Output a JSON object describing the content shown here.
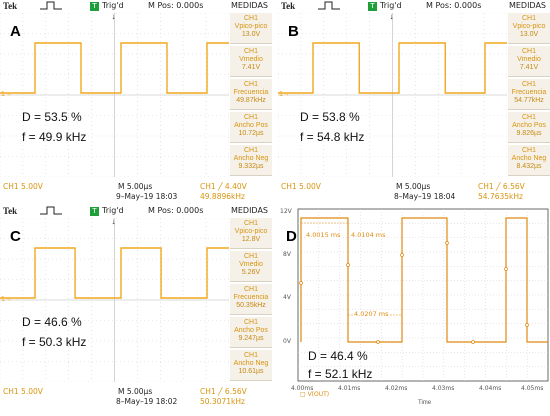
{
  "panels": [
    {
      "letter": "A",
      "top": {
        "brand": "Tek",
        "trig": "Trig'd",
        "trig_icon": "T",
        "mpos": "M Pos: 0.000s",
        "medidas": "MEDIDAS"
      },
      "measurements": [
        {
          "title": "CH1",
          "name": "Vpico-pico",
          "value": "13.0V"
        },
        {
          "title": "CH1",
          "name": "Vmedio",
          "value": "7.41V"
        },
        {
          "title": "CH1",
          "name": "Frecuencia",
          "value": "49.87kHz"
        },
        {
          "title": "CH1",
          "name": "Ancho Pos",
          "value": "10.72µs"
        },
        {
          "title": "CH1",
          "name": "Ancho Neg",
          "value": "9.332µs"
        }
      ],
      "d": "D = 53.5 %",
      "f": "f = 49.9 kHz",
      "bottom": {
        "ch": "CH1  5.00V",
        "tb": "M 5.00µs",
        "date": "9–May–19 18:03",
        "trg": "CH1 ╱ 4.40V",
        "freq": "49.8896kHz"
      },
      "duty": 0.535
    },
    {
      "letter": "B",
      "top": {
        "brand": "Tek",
        "trig": "Trig'd",
        "trig_icon": "T",
        "mpos": "M Pos: 0.000s",
        "medidas": "MEDIDAS"
      },
      "measurements": [
        {
          "title": "CH1",
          "name": "Vpico-pico",
          "value": "13.0V"
        },
        {
          "title": "CH1",
          "name": "Vmedio",
          "value": "7.41V"
        },
        {
          "title": "CH1",
          "name": "Frecuencia",
          "value": "54.77kHz"
        },
        {
          "title": "CH1",
          "name": "Ancho Pos",
          "value": "9.826µs"
        },
        {
          "title": "CH1",
          "name": "Ancho Neg",
          "value": "8.432µs"
        }
      ],
      "d": "D = 53.8 %",
      "f": "f = 54.8 kHz",
      "bottom": {
        "ch": "CH1  5.00V",
        "tb": "M 5.00µs",
        "date": "8–May–19 18:04",
        "trg": "CH1 ╱ 6.56V",
        "freq": "54.7635kHz"
      },
      "duty": 0.538
    },
    {
      "letter": "C",
      "top": {
        "brand": "Tek",
        "trig": "Trig'd",
        "trig_icon": "T",
        "mpos": "M Pos: 0.000s",
        "medidas": "MEDIDAS"
      },
      "measurements": [
        {
          "title": "CH1",
          "name": "Vpico-pico",
          "value": "12.8V"
        },
        {
          "title": "CH1",
          "name": "Vmedio",
          "value": "5.26V"
        },
        {
          "title": "CH1",
          "name": "Frecuencia",
          "value": "50.35kHz"
        },
        {
          "title": "CH1",
          "name": "Ancho Pos",
          "value": "9.247µs"
        },
        {
          "title": "CH1",
          "name": "Ancho Neg",
          "value": "10.61µs"
        }
      ],
      "d": "D = 46.6 %",
      "f": "f = 50.3 kHz",
      "bottom": {
        "ch": "CH1  5.00V",
        "tb": "M 5.00µs",
        "date": "8–May–19 18:02",
        "trg": "CH1 ╱ 6.56V",
        "freq": "50.3071kHz"
      },
      "duty": 0.466
    }
  ],
  "sim": {
    "letter": "D",
    "yticks": [
      "12V",
      "8V",
      "4V",
      "0V"
    ],
    "xticks": [
      "4.00ms",
      "4.01ms",
      "4.02ms",
      "4.03ms",
      "4.04ms",
      "4.05ms"
    ],
    "xtitle": "Time",
    "legend": "□ V(OUT)",
    "ann": [
      "4.0015 ms",
      "4.0104 ms",
      "4.0207 ms"
    ],
    "d": "D = 46.4 %",
    "f": "f = 52.1 kHz"
  },
  "colors": {
    "trace": "#f2a81d",
    "grid": "#c9c9c9",
    "sim_trace": "#e08a10"
  }
}
